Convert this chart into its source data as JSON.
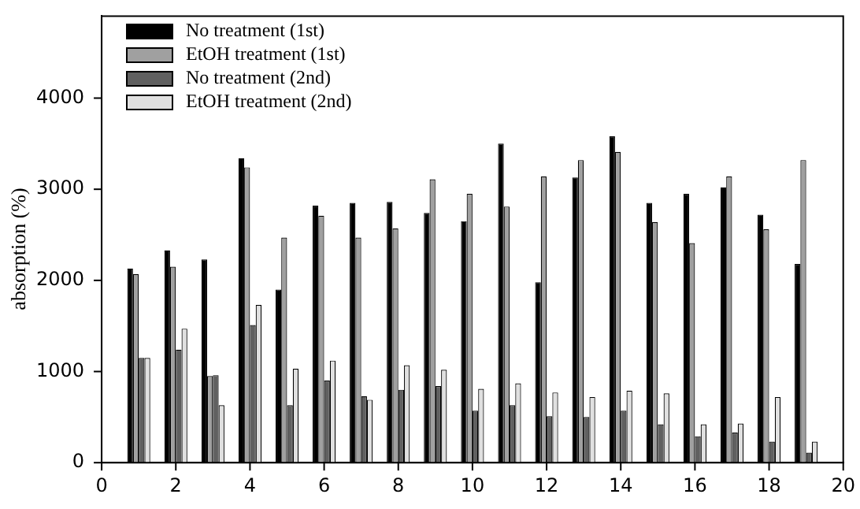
{
  "chart_data": {
    "type": "bar",
    "ylabel": "absorption (%)",
    "x": [
      1,
      2,
      3,
      4,
      5,
      6,
      7,
      8,
      9,
      10,
      11,
      12,
      13,
      14,
      15,
      16,
      17,
      18,
      19
    ],
    "series": [
      {
        "name": "No treatment (1st)",
        "color": "#000000",
        "values": [
          2130,
          2330,
          2230,
          3340,
          1900,
          2820,
          2850,
          2860,
          2740,
          2650,
          3500,
          1980,
          3130,
          3580,
          2850,
          2950,
          3020,
          2720,
          2180
        ]
      },
      {
        "name": "EtOH treatment (1st)",
        "color": "#a0a0a0",
        "values": [
          2070,
          2150,
          950,
          3240,
          2470,
          2710,
          2470,
          2570,
          3110,
          2950,
          2810,
          3140,
          3320,
          3410,
          2640,
          2410,
          3140,
          2560,
          3320
        ]
      },
      {
        "name": "No treatment (2nd)",
        "color": "#606060",
        "values": [
          1150,
          1240,
          960,
          1510,
          630,
          900,
          730,
          800,
          840,
          570,
          630,
          510,
          500,
          570,
          420,
          290,
          330,
          230,
          110
        ]
      },
      {
        "name": "EtOH treatment (2nd)",
        "color": "#e0e0e0",
        "values": [
          1150,
          1470,
          630,
          1730,
          1030,
          1120,
          690,
          1070,
          1020,
          810,
          870,
          770,
          720,
          790,
          760,
          420,
          430,
          720,
          230
        ]
      }
    ],
    "xlim": [
      0,
      20
    ],
    "xticks": [
      0,
      2,
      4,
      6,
      8,
      10,
      12,
      14,
      16,
      18,
      20
    ],
    "ylim": [
      0,
      4900
    ],
    "yticks": [
      0,
      1000,
      2000,
      3000,
      4000
    ],
    "grid": false,
    "legend": "top left"
  }
}
